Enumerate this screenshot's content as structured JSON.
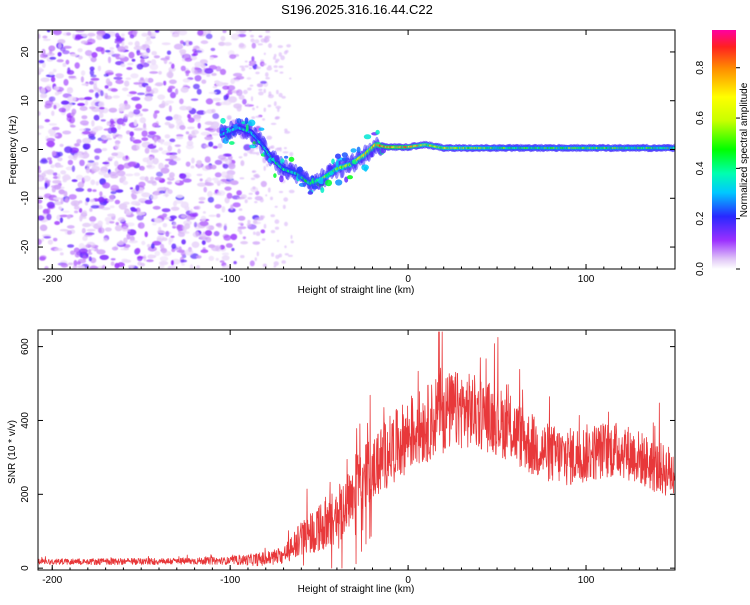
{
  "title": "S196.2025.316.16.44.C22",
  "colors": {
    "snr_line": "#e8383a",
    "axis": "#000000",
    "background": "#ffffff"
  },
  "chart_data": [
    {
      "type": "heatmap",
      "name": "spectrogram",
      "xlabel": "Height of straight line (km)",
      "ylabel": "Frequency (Hz)",
      "xlim": [
        -208,
        150
      ],
      "ylim": [
        -24.5,
        24.5
      ],
      "x_ticks": [
        -200,
        -100,
        0,
        100
      ],
      "x_tick_labels": [
        "-200",
        "-100",
        "0",
        "100"
      ],
      "y_ticks": [
        -20,
        -10,
        0,
        10,
        20
      ],
      "y_tick_labels": [
        "-20",
        "-10",
        "0",
        "10",
        "20"
      ],
      "colorbar": {
        "label": "Normalized spectral amplitude",
        "range": [
          0,
          0.95
        ],
        "ticks": [
          0.0,
          0.2,
          0.4,
          0.6,
          0.8
        ],
        "tick_labels": [
          "0.0",
          "0.2",
          "0.4",
          "0.6",
          "0.8"
        ]
      },
      "noise_region_x": [
        -208,
        -75
      ],
      "signal_track": [
        {
          "x": -105,
          "f": 3.0
        },
        {
          "x": -95,
          "f": 4.5
        },
        {
          "x": -88,
          "f": 3.5
        },
        {
          "x": -82,
          "f": 1.0
        },
        {
          "x": -76,
          "f": -2.0
        },
        {
          "x": -70,
          "f": -4.0
        },
        {
          "x": -62,
          "f": -5.0
        },
        {
          "x": -55,
          "f": -7.0
        },
        {
          "x": -48,
          "f": -6.0
        },
        {
          "x": -40,
          "f": -4.0
        },
        {
          "x": -32,
          "f": -3.0
        },
        {
          "x": -24,
          "f": -1.0
        },
        {
          "x": -18,
          "f": 1.0
        },
        {
          "x": -12,
          "f": 0.5
        },
        {
          "x": 0,
          "f": 0.5
        },
        {
          "x": 10,
          "f": 1.0
        },
        {
          "x": 20,
          "f": 0.3
        },
        {
          "x": 40,
          "f": 0.3
        },
        {
          "x": 60,
          "f": 0.3
        },
        {
          "x": 80,
          "f": 0.3
        },
        {
          "x": 100,
          "f": 0.3
        },
        {
          "x": 120,
          "f": 0.3
        },
        {
          "x": 150,
          "f": 0.3
        }
      ],
      "track_amplitude": [
        {
          "x": -105,
          "a": 0.35
        },
        {
          "x": -80,
          "a": 0.4
        },
        {
          "x": -60,
          "a": 0.45
        },
        {
          "x": -40,
          "a": 0.6
        },
        {
          "x": -20,
          "a": 0.75
        },
        {
          "x": -10,
          "a": 0.85
        },
        {
          "x": 0,
          "a": 0.8
        },
        {
          "x": 10,
          "a": 0.7
        },
        {
          "x": 25,
          "a": 0.65
        },
        {
          "x": 60,
          "a": 0.5
        },
        {
          "x": 100,
          "a": 0.55
        },
        {
          "x": 150,
          "a": 0.5
        }
      ]
    },
    {
      "type": "line",
      "name": "snr",
      "xlabel": "Height of straight line (km)",
      "ylabel": "SNR (10 * v/v)",
      "xlim": [
        -208,
        150
      ],
      "ylim": [
        -5,
        645
      ],
      "x_ticks": [
        -200,
        -100,
        0,
        100
      ],
      "x_tick_labels": [
        "-200",
        "-100",
        "0",
        "100"
      ],
      "y_ticks": [
        0,
        200,
        400,
        600
      ],
      "y_tick_labels": [
        "0",
        "200",
        "400",
        "600"
      ],
      "envelope": [
        {
          "x": -208,
          "y": 18
        },
        {
          "x": -150,
          "y": 18
        },
        {
          "x": -100,
          "y": 20
        },
        {
          "x": -80,
          "y": 25
        },
        {
          "x": -70,
          "y": 35
        },
        {
          "x": -60,
          "y": 80
        },
        {
          "x": -50,
          "y": 110
        },
        {
          "x": -40,
          "y": 140
        },
        {
          "x": -30,
          "y": 220
        },
        {
          "x": -20,
          "y": 270
        },
        {
          "x": -10,
          "y": 320
        },
        {
          "x": 0,
          "y": 360
        },
        {
          "x": 10,
          "y": 390
        },
        {
          "x": 20,
          "y": 420
        },
        {
          "x": 30,
          "y": 430
        },
        {
          "x": 40,
          "y": 420
        },
        {
          "x": 50,
          "y": 400
        },
        {
          "x": 60,
          "y": 370
        },
        {
          "x": 70,
          "y": 330
        },
        {
          "x": 80,
          "y": 310
        },
        {
          "x": 90,
          "y": 300
        },
        {
          "x": 100,
          "y": 310
        },
        {
          "x": 110,
          "y": 320
        },
        {
          "x": 120,
          "y": 320
        },
        {
          "x": 130,
          "y": 300
        },
        {
          "x": 140,
          "y": 270
        },
        {
          "x": 150,
          "y": 260
        }
      ],
      "noise_amplitude": [
        {
          "x": -208,
          "y": 8
        },
        {
          "x": -100,
          "y": 10
        },
        {
          "x": -70,
          "y": 25
        },
        {
          "x": -55,
          "y": 60
        },
        {
          "x": -40,
          "y": 80
        },
        {
          "x": -20,
          "y": 90
        },
        {
          "x": 0,
          "y": 100
        },
        {
          "x": 20,
          "y": 110
        },
        {
          "x": 40,
          "y": 100
        },
        {
          "x": 60,
          "y": 90
        },
        {
          "x": 80,
          "y": 80
        },
        {
          "x": 100,
          "y": 80
        },
        {
          "x": 150,
          "y": 70
        }
      ],
      "peak_y": 640
    }
  ]
}
